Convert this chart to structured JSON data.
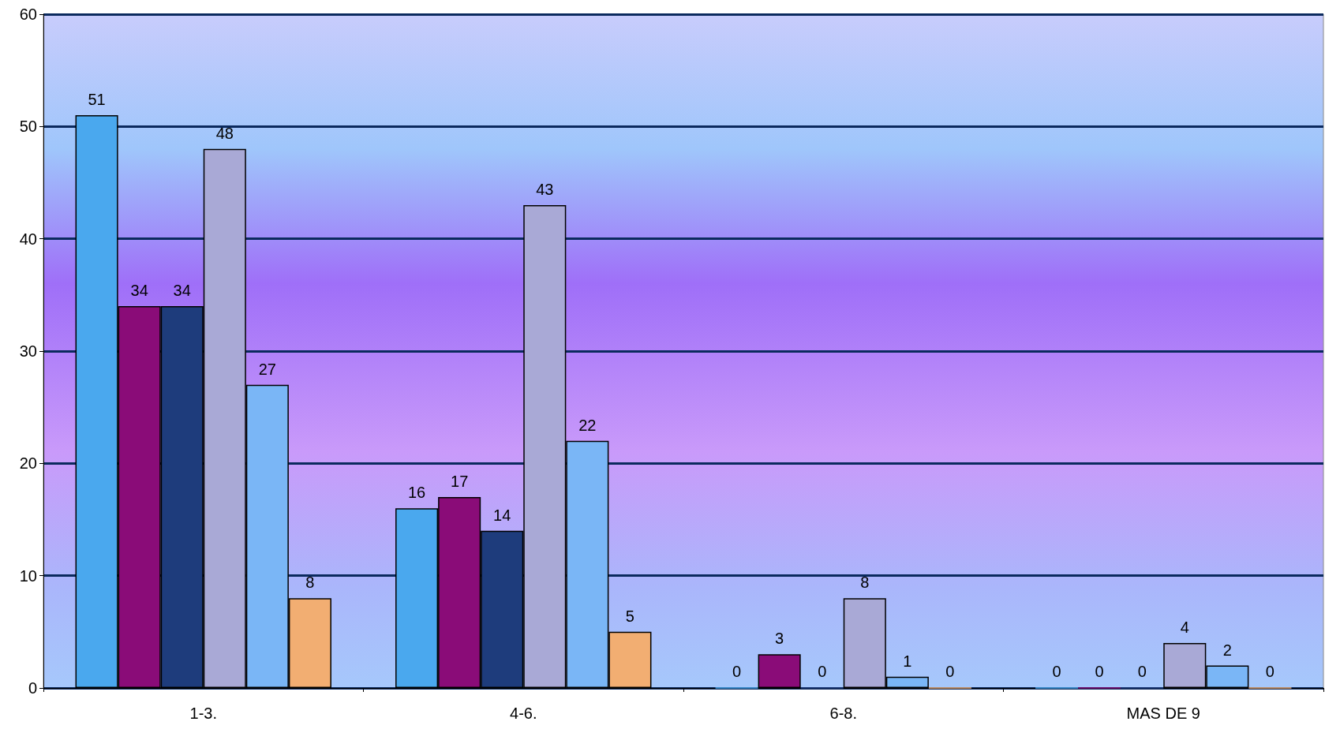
{
  "chart_data": {
    "type": "bar",
    "categories": [
      "1-3.",
      "4-6.",
      "6-8.",
      "MAS DE 9"
    ],
    "series": [
      {
        "color": "#4aa8ee",
        "values": [
          51,
          16,
          0,
          0
        ]
      },
      {
        "color": "#8a0c78",
        "values": [
          34,
          17,
          3,
          0
        ]
      },
      {
        "color": "#1e3c7c",
        "values": [
          34,
          14,
          0,
          0
        ]
      },
      {
        "color": "#a9a9d6",
        "values": [
          48,
          43,
          8,
          4
        ]
      },
      {
        "color": "#7ab6f6",
        "values": [
          27,
          22,
          1,
          2
        ]
      },
      {
        "color": "#f2ae72",
        "values": [
          8,
          5,
          0,
          0
        ]
      }
    ],
    "ylim": [
      0,
      60
    ],
    "yticks": [
      0,
      10,
      20,
      30,
      40,
      50,
      60
    ],
    "grid": "y",
    "data_labels": true
  }
}
